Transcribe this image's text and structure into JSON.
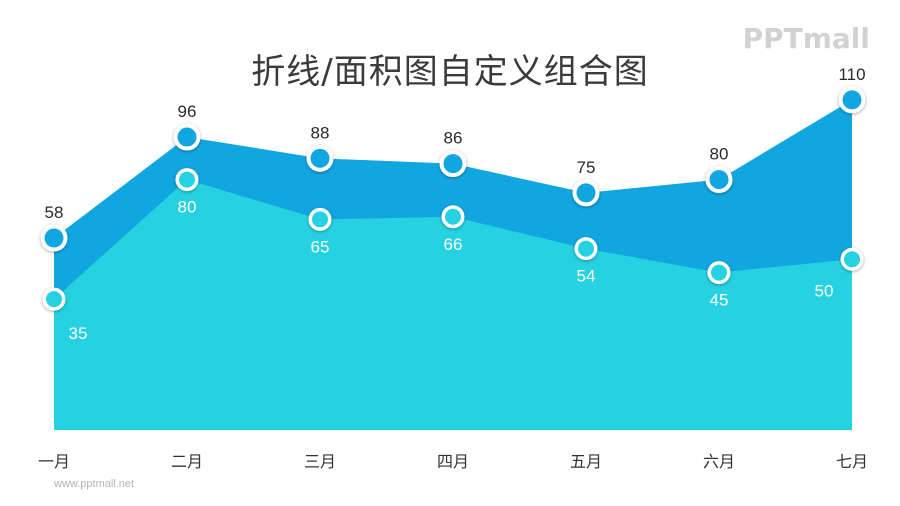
{
  "title": "折线/面积图自定义组合图",
  "brand_logo": "PPTmall",
  "website": "www.pptmall.net",
  "colors": {
    "upper_area": "#11a6e0",
    "lower_area": "#26d1e1",
    "marker_ring": "#ffffff",
    "upper_marker_fill": "#11a6e0",
    "lower_marker_fill": "#26d1e1"
  },
  "chart_data": {
    "type": "area",
    "categories": [
      "一月",
      "二月",
      "三月",
      "四月",
      "五月",
      "六月",
      "七月"
    ],
    "series": [
      {
        "values": [
          58,
          96,
          88,
          86,
          75,
          80,
          110
        ]
      },
      {
        "values": [
          35,
          80,
          65,
          66,
          54,
          45,
          50
        ]
      }
    ],
    "stacked": false,
    "ylim": [
      -15,
      125
    ],
    "grid": false,
    "legend": "none"
  }
}
